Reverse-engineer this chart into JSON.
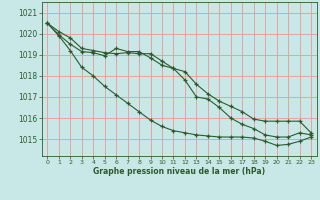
{
  "background_color": "#c8e8e8",
  "grid_color": "#e8a0a0",
  "line_color": "#2d5a2d",
  "xlabel": "Graphe pression niveau de la mer (hPa)",
  "xlim": [
    -0.5,
    23.5
  ],
  "ylim": [
    1014.2,
    1021.5
  ],
  "yticks": [
    1015,
    1016,
    1017,
    1018,
    1019,
    1020,
    1021
  ],
  "xticks": [
    0,
    1,
    2,
    3,
    4,
    5,
    6,
    7,
    8,
    9,
    10,
    11,
    12,
    13,
    14,
    15,
    16,
    17,
    18,
    19,
    20,
    21,
    22,
    23
  ],
  "series": [
    [
      1020.5,
      1020.1,
      1019.8,
      1019.3,
      1019.2,
      1019.1,
      1019.05,
      1019.1,
      1019.05,
      1019.05,
      1018.7,
      1018.35,
      1017.8,
      1017.0,
      1016.9,
      1016.5,
      1016.0,
      1015.7,
      1015.5,
      1015.2,
      1015.1,
      1015.1,
      1015.3,
      1015.2
    ],
    [
      1020.5,
      1019.95,
      1019.5,
      1019.15,
      1019.1,
      1018.95,
      1019.3,
      1019.15,
      1019.15,
      1018.85,
      1018.5,
      1018.35,
      1018.2,
      1017.6,
      1017.15,
      1016.8,
      1016.55,
      1016.3,
      1015.95,
      1015.85,
      1015.85,
      1015.85,
      1015.85,
      1015.3
    ],
    [
      1020.5,
      1019.9,
      1019.2,
      1018.4,
      1018.0,
      1017.5,
      1017.1,
      1016.7,
      1016.3,
      1015.9,
      1015.6,
      1015.4,
      1015.3,
      1015.2,
      1015.15,
      1015.1,
      1015.1,
      1015.1,
      1015.05,
      1014.9,
      1014.7,
      1014.75,
      1014.9,
      1015.1
    ]
  ]
}
